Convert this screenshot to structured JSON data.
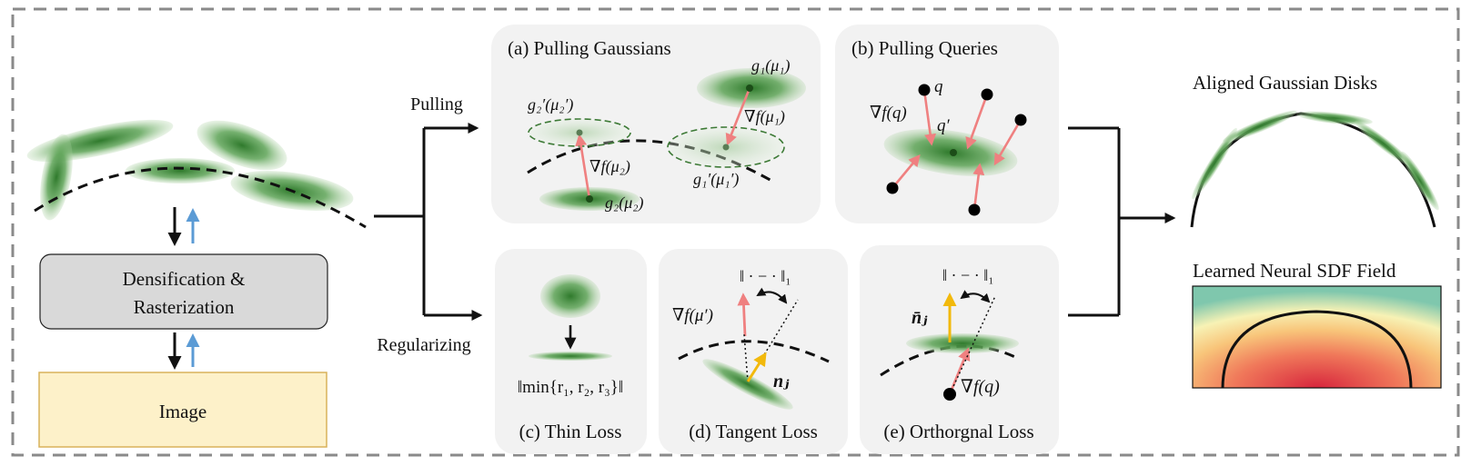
{
  "left": {
    "process_box": [
      "Densification &",
      "Rasterization"
    ],
    "image_box": "Image"
  },
  "branches": {
    "pulling": "Pulling",
    "regularizing": "Regularizing"
  },
  "panels": {
    "a": {
      "title": "(a) Pulling Gaussians",
      "labels": [
        "g₂′(μ₂′)",
        "g₁(μ₁)",
        "∇f(μ₁)",
        "∇f(μ₂)",
        "g₁′(μ₁′)",
        "g₂(μ₂)"
      ]
    },
    "b": {
      "title": "(b) Pulling Queries",
      "labels": [
        "q",
        "∇f(q)",
        "q′"
      ]
    },
    "c": {
      "title": "(c) Thin Loss",
      "formula": "‖min{r₁, r₂, r₃}‖"
    },
    "d": {
      "title": "(d) Tangent Loss",
      "labels": [
        "‖ · − · ‖₁",
        "∇f(μ′)",
        "nⱼ"
      ]
    },
    "e": {
      "title": "(e) Orthorgnal Loss",
      "labels": [
        "‖ · − · ‖₁",
        "n̄ⱼ",
        "∇f(q)"
      ]
    }
  },
  "outputs": {
    "disks_title": "Aligned Gaussian Disks",
    "sdf_title": "Learned Neural SDF Field"
  },
  "colors": {
    "border_dash": "#8a8a8a",
    "panel_bg": "#f2f2f2",
    "gaussian": "#3f8a3a",
    "pull_arrow": "#ef8080",
    "up_arrow": "#5b9bd5",
    "normal_arrow": "#f2b90c",
    "process_box": "#d9d9d9",
    "image_box": "#fdf1c9"
  }
}
